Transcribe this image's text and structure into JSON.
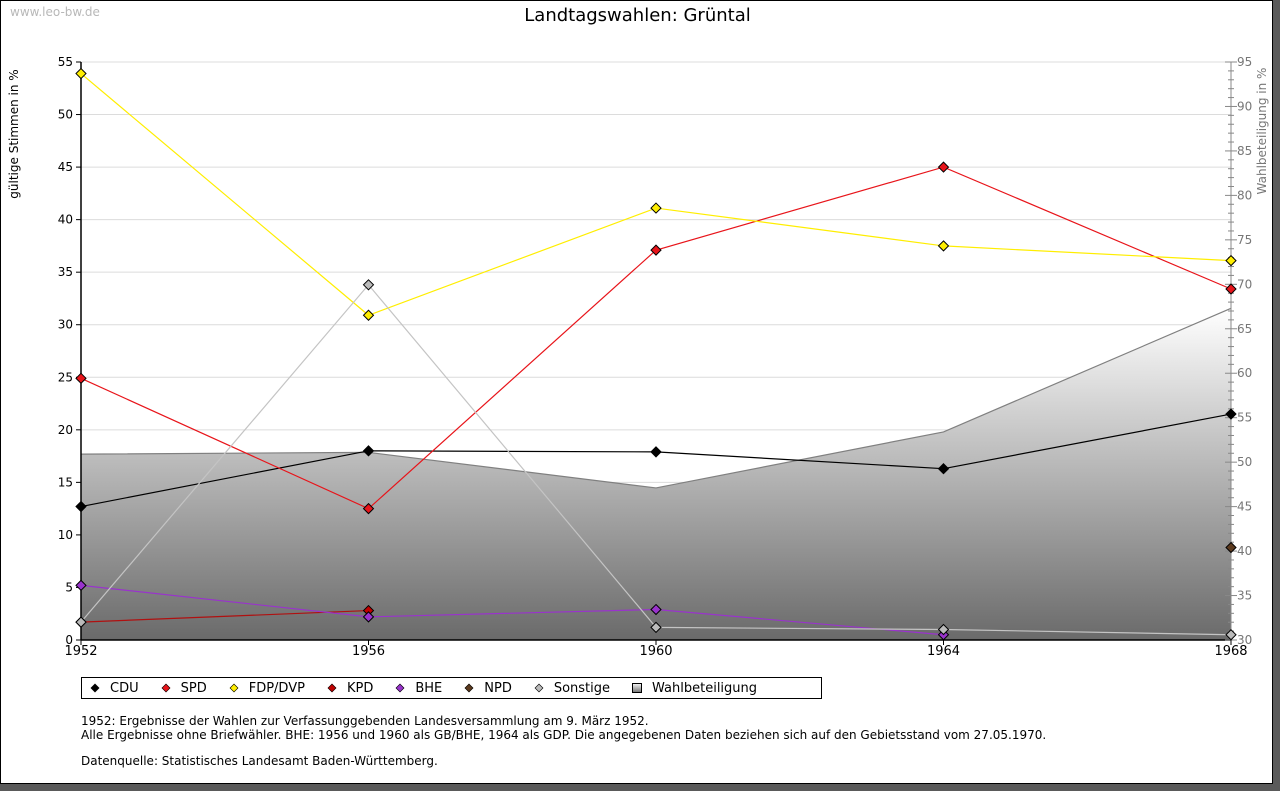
{
  "watermark": "www.leo-bw.de",
  "chart_data": {
    "type": "line",
    "title": "Landtagswahlen: Grüntal",
    "xlabel": "",
    "ylabel": "gültige Stimmen in %",
    "y2label": "Wahlbeteiligung in %",
    "x": [
      1952,
      1956,
      1960,
      1964,
      1968
    ],
    "xticks": [
      "1952",
      "1956",
      "1960",
      "1964",
      "1968"
    ],
    "ylim": [
      0,
      55
    ],
    "yticks": [
      "0",
      "5",
      "10",
      "15",
      "20",
      "25",
      "30",
      "35",
      "40",
      "45",
      "50",
      "55"
    ],
    "y2lim": [
      30,
      95
    ],
    "y2ticks": [
      "30",
      "35",
      "40",
      "45",
      "50",
      "55",
      "60",
      "65",
      "70",
      "75",
      "80",
      "85",
      "90",
      "95"
    ],
    "grid": true,
    "legend_position": "bottom",
    "series": [
      {
        "name": "CDU",
        "color": "#000000",
        "line": "#000000",
        "values": [
          12.7,
          18.0,
          17.9,
          16.3,
          21.5
        ]
      },
      {
        "name": "SPD",
        "color": "#e8141a",
        "line": "#e8141a",
        "values": [
          24.9,
          12.5,
          37.1,
          45.0,
          33.4
        ]
      },
      {
        "name": "FDP/DVP",
        "color": "#ffee00",
        "line": "#ffee00",
        "values": [
          53.9,
          30.9,
          41.1,
          37.5,
          36.1
        ]
      },
      {
        "name": "KPD",
        "color": "#c00000",
        "line": "#b01010",
        "values": [
          1.7,
          2.8,
          null,
          null,
          null
        ]
      },
      {
        "name": "BHE",
        "color": "#9933cc",
        "line": "#9933cc",
        "values": [
          5.2,
          2.2,
          2.9,
          0.5,
          null
        ]
      },
      {
        "name": "NPD",
        "color": "#5c3a1e",
        "line": "#5c3a1e",
        "values": [
          null,
          null,
          null,
          null,
          8.8
        ]
      },
      {
        "name": "Sonstige",
        "color": "#bbbbbb",
        "line": "#c4c4c4",
        "values": [
          1.7,
          33.8,
          1.2,
          1.0,
          0.5
        ]
      }
    ],
    "area_series": {
      "name": "Wahlbeteiligung",
      "axis": "right",
      "values": [
        50.9,
        51.1,
        47.1,
        53.4,
        67.3
      ]
    }
  },
  "legend": [
    {
      "label": "CDU",
      "color": "#000000",
      "shape": "diamond"
    },
    {
      "label": "SPD",
      "color": "#e8141a",
      "shape": "diamond"
    },
    {
      "label": "FDP/DVP",
      "color": "#ffee00",
      "shape": "diamond"
    },
    {
      "label": "KPD",
      "color": "#c00000",
      "shape": "diamond"
    },
    {
      "label": "BHE",
      "color": "#9933cc",
      "shape": "diamond"
    },
    {
      "label": "NPD",
      "color": "#5c3a1e",
      "shape": "diamond"
    },
    {
      "label": "Sonstige",
      "color": "#bbbbbb",
      "shape": "diamond"
    },
    {
      "label": "Wahlbeteiligung",
      "color": "#999999",
      "shape": "square"
    }
  ],
  "notes": {
    "line1": "1952: Ergebnisse der Wahlen zur Verfassunggebenden Landesversammlung am 9. März 1952.",
    "line2": "Alle Ergebnisse ohne Briefwähler. BHE: 1956 und 1960 als GB/BHE, 1964 als GDP. Die angegebenen Daten beziehen sich auf den Gebietsstand vom 27.05.1970.",
    "source": "Datenquelle: Statistisches Landesamt Baden-Württemberg."
  }
}
